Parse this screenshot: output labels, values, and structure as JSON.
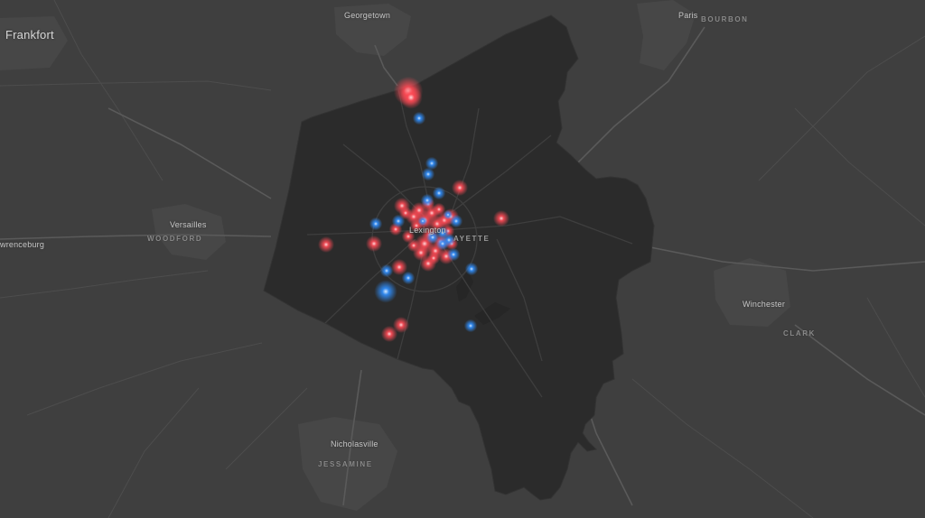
{
  "map": {
    "cities": {
      "frankfort": "Frankfort",
      "georgetown": "Georgetown",
      "paris": "Paris",
      "versailles": "Versailles",
      "lawrenceburg": "wrenceburg",
      "lexington": "Lexington",
      "winchester": "Winchester",
      "nicholasville": "Nicholasville"
    },
    "counties": {
      "bourbon": "BOURBON",
      "woodford": "WOODFORD",
      "fayette": "AYETTE",
      "clark": "CLARK",
      "jessamine": "JESSAMINE"
    },
    "colors": {
      "background": "#3f3f3f",
      "county_fill": "#2b2b2b",
      "road": "#5a5a5a",
      "urban": "#4a4a4a",
      "red_marker": "#ff4a55",
      "blue_marker": "#2f8fff"
    },
    "markers": {
      "red_count": 34,
      "blue_count": 20
    }
  }
}
